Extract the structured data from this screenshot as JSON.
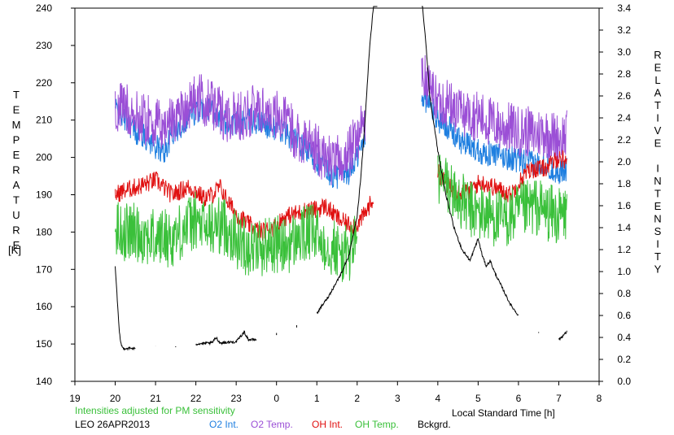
{
  "chart_data": {
    "type": "line",
    "left_axis_label": "TEMPERATURE",
    "left_axis_unit": "[K]",
    "right_axis_label": "RELATIVE INTENSITY",
    "xlabel": "Local Standard Time [h]",
    "note": "Intensities adjusted for PM sensitivity",
    "station": "LEO 26APR2013",
    "x_ticks": [
      "19",
      "20",
      "21",
      "22",
      "23",
      "0",
      "1",
      "2",
      "3",
      "4",
      "5",
      "6",
      "7",
      "8"
    ],
    "y_left_ticks": [
      "140",
      "150",
      "160",
      "170",
      "180",
      "190",
      "200",
      "210",
      "220",
      "230",
      "240"
    ],
    "y_right_ticks": [
      "0.0",
      "0.2",
      "0.4",
      "0.6",
      "0.8",
      "1.0",
      "1.2",
      "1.4",
      "1.6",
      "1.8",
      "2.0",
      "2.2",
      "2.4",
      "2.6",
      "2.8",
      "3.0",
      "3.2",
      "3.4"
    ],
    "xlim": [
      19,
      32
    ],
    "ylim_left": [
      140,
      240
    ],
    "ylim_right": [
      0,
      3.4
    ],
    "grid": false,
    "series": [
      {
        "name": "O2 Int.",
        "color": "#1f7fe0",
        "axis": "left",
        "x": [
          20.0,
          20.2,
          20.5,
          20.8,
          21.0,
          21.2,
          21.4,
          21.6,
          21.8,
          22.0,
          22.2,
          22.4,
          22.6,
          22.8,
          23.0,
          23.3,
          23.6,
          23.9,
          24.2,
          24.5,
          24.8,
          25.0,
          25.2,
          25.4,
          25.6,
          25.8,
          26.0,
          26.2,
          27.6,
          27.8,
          28.0,
          28.2,
          28.4,
          28.6,
          28.8,
          29.0,
          29.2,
          29.4,
          29.6,
          29.8,
          30.0,
          30.2,
          30.4,
          30.6,
          30.8,
          31.0,
          31.2
        ],
        "y": [
          213,
          211,
          207,
          205,
          203,
          201,
          206,
          208,
          211,
          212,
          214,
          213,
          210,
          209,
          209,
          210,
          209,
          208,
          207,
          204,
          201,
          199,
          197,
          195,
          195,
          196,
          200,
          205,
          217,
          214,
          210,
          209,
          206,
          204,
          203,
          202,
          201,
          201,
          200,
          200,
          199,
          199,
          198,
          199,
          197,
          196,
          197
        ]
      },
      {
        "name": "O2 Temp.",
        "color": "#9b4fd6",
        "axis": "left",
        "x": [
          20.0,
          20.2,
          20.5,
          20.8,
          21.0,
          21.2,
          21.4,
          21.6,
          21.8,
          22.0,
          22.2,
          22.4,
          22.6,
          22.8,
          23.0,
          23.3,
          23.6,
          23.9,
          24.2,
          24.5,
          24.8,
          25.0,
          25.2,
          25.4,
          25.6,
          25.8,
          26.0,
          26.2,
          27.6,
          27.8,
          28.0,
          28.2,
          28.4,
          28.6,
          28.8,
          29.0,
          29.2,
          29.4,
          29.6,
          29.8,
          30.0,
          30.2,
          30.4,
          30.6,
          30.8,
          31.0,
          31.2
        ],
        "y": [
          212,
          214,
          211,
          210,
          209,
          208,
          210,
          212,
          214,
          216,
          215,
          214,
          212,
          211,
          211,
          212,
          213,
          212,
          210,
          206,
          204,
          202,
          200,
          199,
          199,
          201,
          206,
          210,
          222,
          219,
          215,
          215,
          213,
          212,
          212,
          211,
          210,
          209,
          208,
          208,
          207,
          207,
          206,
          207,
          206,
          205,
          206
        ]
      },
      {
        "name": "OH Int.",
        "color": "#e01010",
        "axis": "left",
        "x": [
          20.0,
          20.2,
          20.5,
          20.8,
          21.0,
          21.2,
          21.4,
          21.6,
          21.8,
          22.0,
          22.2,
          22.4,
          22.6,
          22.8,
          23.0,
          23.3,
          23.6,
          23.9,
          24.2,
          24.5,
          24.8,
          25.0,
          25.2,
          25.4,
          25.6,
          25.8,
          26.0,
          26.2,
          26.4,
          28.0,
          28.2,
          28.4,
          28.6,
          28.8,
          29.0,
          29.2,
          29.4,
          29.6,
          29.8,
          30.0,
          30.2,
          30.4,
          30.6,
          30.8,
          31.0,
          31.2
        ],
        "y": [
          190,
          191,
          192,
          193,
          194,
          192,
          190,
          191,
          192,
          191,
          189,
          190,
          192,
          188,
          185,
          182,
          180,
          181,
          184,
          185,
          186,
          186,
          187,
          185,
          183,
          182,
          182,
          185,
          189,
          196,
          193,
          191,
          191,
          191,
          193,
          193,
          192,
          191,
          190,
          193,
          196,
          197,
          197,
          198,
          200,
          199
        ]
      },
      {
        "name": "OH Temp.",
        "color": "#3ac03a",
        "axis": "left",
        "x": [
          20.0,
          20.2,
          20.5,
          20.8,
          21.0,
          21.2,
          21.4,
          21.6,
          21.8,
          22.0,
          22.2,
          22.4,
          22.6,
          22.8,
          23.0,
          23.3,
          23.6,
          23.9,
          24.2,
          24.5,
          24.8,
          25.0,
          25.2,
          25.4,
          25.6,
          25.8,
          26.0,
          28.0,
          28.2,
          28.4,
          28.6,
          28.8,
          29.0,
          29.2,
          29.4,
          29.6,
          29.8,
          30.0,
          30.2,
          30.4,
          30.6,
          30.8,
          31.0,
          31.2
        ],
        "y": [
          181,
          180,
          180,
          179,
          178,
          179,
          178,
          180,
          182,
          183,
          181,
          181,
          182,
          181,
          178,
          176,
          176,
          177,
          176,
          178,
          180,
          179,
          177,
          176,
          174,
          174,
          180,
          194,
          193,
          190,
          188,
          186,
          185,
          185,
          184,
          183,
          184,
          185,
          186,
          187,
          186,
          185,
          184,
          185
        ]
      },
      {
        "name": "Bckgrd.",
        "color": "#000000",
        "axis": "right",
        "x": [
          20.0,
          20.05,
          20.1,
          20.15,
          20.2,
          20.5,
          21.0,
          21.5,
          22.0,
          22.4,
          22.5,
          22.6,
          23.0,
          23.2,
          23.3,
          23.5,
          24.0,
          24.5,
          25.0,
          25.3,
          25.6,
          25.8,
          26.0,
          26.1,
          26.2,
          26.3,
          26.4,
          26.5,
          27.6,
          27.7,
          27.8,
          28.0,
          28.2,
          28.4,
          28.6,
          28.8,
          29.0,
          29.1,
          29.2,
          29.3,
          29.4,
          29.6,
          29.8,
          30.0,
          30.5,
          31.0,
          31.2
        ],
        "y": [
          1.05,
          0.75,
          0.45,
          0.33,
          0.3,
          0.3,
          0.31,
          0.32,
          0.34,
          0.35,
          0.4,
          0.35,
          0.36,
          0.45,
          0.38,
          0.38,
          0.43,
          0.5,
          0.62,
          0.78,
          0.98,
          1.15,
          1.5,
          1.9,
          2.4,
          3.0,
          3.4,
          3.5,
          3.5,
          3.1,
          2.6,
          2.1,
          1.7,
          1.4,
          1.2,
          1.1,
          1.3,
          1.15,
          1.05,
          1.1,
          1.0,
          0.85,
          0.7,
          0.6,
          0.45,
          0.38,
          0.45
        ]
      }
    ]
  }
}
